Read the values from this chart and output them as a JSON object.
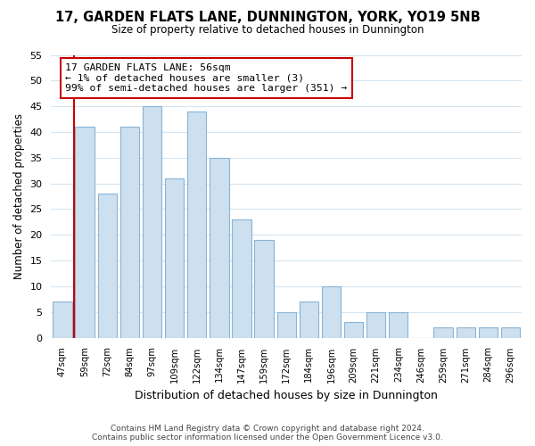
{
  "title": "17, GARDEN FLATS LANE, DUNNINGTON, YORK, YO19 5NB",
  "subtitle": "Size of property relative to detached houses in Dunnington",
  "xlabel": "Distribution of detached houses by size in Dunnington",
  "ylabel": "Number of detached properties",
  "bar_labels": [
    "47sqm",
    "59sqm",
    "72sqm",
    "84sqm",
    "97sqm",
    "109sqm",
    "122sqm",
    "134sqm",
    "147sqm",
    "159sqm",
    "172sqm",
    "184sqm",
    "196sqm",
    "209sqm",
    "221sqm",
    "234sqm",
    "246sqm",
    "259sqm",
    "271sqm",
    "284sqm",
    "296sqm"
  ],
  "bar_values": [
    7,
    41,
    28,
    41,
    45,
    31,
    44,
    35,
    23,
    19,
    5,
    7,
    10,
    3,
    5,
    5,
    0,
    2,
    2,
    2,
    2
  ],
  "bar_color": "#cce0f0",
  "bar_edge_color": "#8ab4d4",
  "annotation_title": "17 GARDEN FLATS LANE: 56sqm",
  "annotation_line1": "← 1% of detached houses are smaller (3)",
  "annotation_line2": "99% of semi-detached houses are larger (351) →",
  "annotation_box_color": "#ffffff",
  "annotation_box_edge": "#cc0000",
  "property_line_color": "#cc0000",
  "ylim": [
    0,
    55
  ],
  "footer1": "Contains HM Land Registry data © Crown copyright and database right 2024.",
  "footer2": "Contains public sector information licensed under the Open Government Licence v3.0."
}
